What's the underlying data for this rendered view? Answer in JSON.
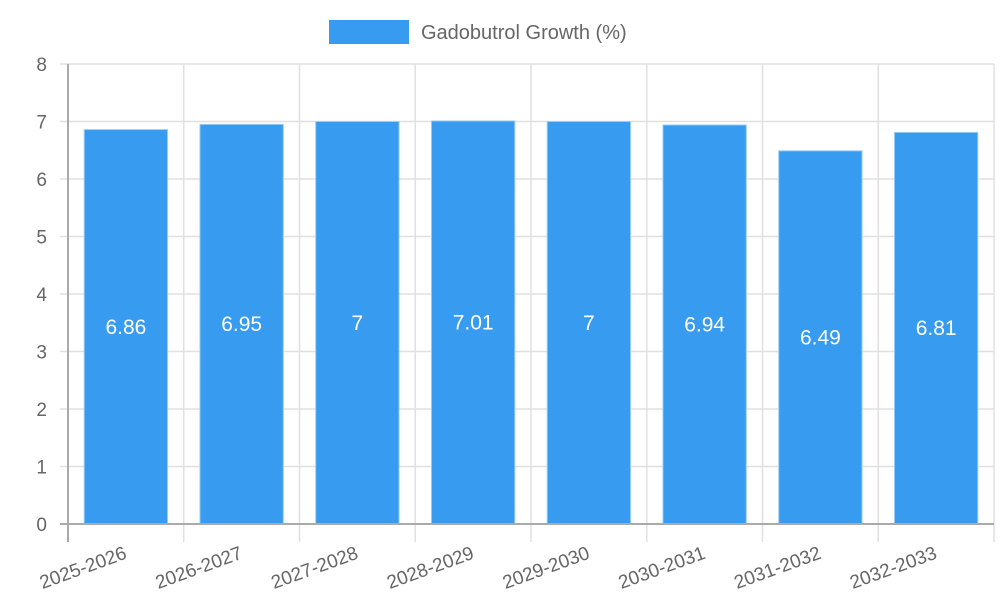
{
  "legend": {
    "label": "Gadobutrol Growth (%)",
    "color": "#379bef"
  },
  "colors": {
    "bar": "#379bef",
    "bar_border": "#9ccdf7",
    "grid": "#e0e0e0",
    "axis": "#aaaaaa",
    "text": "#666666"
  },
  "chart_data": {
    "type": "bar",
    "title": "",
    "xlabel": "",
    "ylabel": "",
    "categories": [
      "2025-2026",
      "2026-2027",
      "2027-2028",
      "2028-2029",
      "2029-2030",
      "2030-2031",
      "2031-2032",
      "2032-2033"
    ],
    "series": [
      {
        "name": "Gadobutrol Growth (%)",
        "values": [
          6.86,
          6.95,
          7,
          7.01,
          7,
          6.94,
          6.49,
          6.81
        ]
      }
    ],
    "data_labels": [
      "6.86",
      "6.95",
      "7",
      "7.01",
      "7",
      "6.94",
      "6.49",
      "6.81"
    ],
    "ylim": [
      0,
      8
    ],
    "yticks": [
      0,
      1,
      2,
      3,
      4,
      5,
      6,
      7,
      8
    ],
    "grid": true,
    "legend_position": "top"
  }
}
